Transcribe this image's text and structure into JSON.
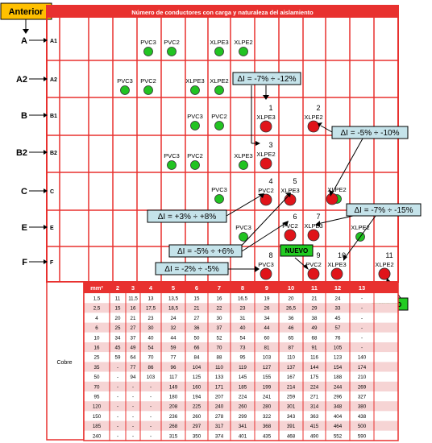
{
  "anterior_label": "Anterior",
  "header_title": "Número de conductores con carga y naturaleza del aislamiento",
  "row_labels": [
    {
      "outer": "A",
      "inner": "A1"
    },
    {
      "outer": "A2",
      "inner": "A2"
    },
    {
      "outer": "B",
      "inner": "B1"
    },
    {
      "outer": "B2",
      "inner": "B2"
    },
    {
      "outer": "C",
      "inner": "C"
    },
    {
      "outer": "E",
      "inner": "E"
    },
    {
      "outer": "F",
      "inner": "F"
    }
  ],
  "insulation_labels": {
    "A1": [
      "PVC3",
      "PVC2",
      "XLPE3",
      "XLPE2"
    ],
    "A2": [
      "PVC3",
      "PVC2",
      "XLPE3",
      "XLPE2"
    ],
    "B1": [
      "PVC3",
      "PVC2"
    ],
    "B2": [
      "PVC3",
      "PVC2",
      "XLPE3"
    ],
    "C": [
      "PVC3"
    ],
    "E": [
      "PVC3"
    ],
    "E_right": "XLPE2",
    "C_right": "XLPE2",
    "numbered": [
      {
        "n": "1",
        "label": "XLPE3"
      },
      {
        "n": "2",
        "label": "XLPE2"
      },
      {
        "n": "3",
        "label": "XLPE2"
      },
      {
        "n": "4",
        "label": "PVC2"
      },
      {
        "n": "5",
        "label": "XLPE3"
      },
      {
        "n": "6",
        "label": "PVC2"
      },
      {
        "n": "7",
        "label": "XLPE3"
      },
      {
        "n": "8",
        "label": "PVC3"
      },
      {
        "n": "9",
        "label": "PVC2"
      },
      {
        "n": "10",
        "label": "XLPE3"
      },
      {
        "n": "11",
        "label": "XLPE2"
      }
    ]
  },
  "callouts": [
    "ΔI = -7% ÷ -12%",
    "ΔI = -5% ÷ -10%",
    "ΔI = +3% ÷ +8%",
    "ΔI = -7% ÷ -15%",
    "ΔI = -5% ÷ +6%",
    "ΔI = -2% ÷ -5%"
  ],
  "nuevo_label": "NUEVO",
  "table": {
    "section_label": "Cobre",
    "header": [
      "mm²",
      "2",
      "3",
      "4",
      "5",
      "6",
      "7",
      "8",
      "9",
      "10",
      "11",
      "12",
      "13"
    ],
    "rows": [
      [
        "1,5",
        "11",
        "11,5",
        "13",
        "13,5",
        "15",
        "16",
        "16,5",
        "19",
        "20",
        "21",
        "24",
        "-"
      ],
      [
        "2,5",
        "15",
        "16",
        "17,5",
        "18,5",
        "21",
        "22",
        "23",
        "26",
        "26,5",
        "29",
        "33",
        "-"
      ],
      [
        "4",
        "20",
        "21",
        "23",
        "24",
        "27",
        "30",
        "31",
        "34",
        "36",
        "38",
        "45",
        "-"
      ],
      [
        "6",
        "25",
        "27",
        "30",
        "32",
        "36",
        "37",
        "40",
        "44",
        "46",
        "49",
        "57",
        "-"
      ],
      [
        "10",
        "34",
        "37",
        "40",
        "44",
        "50",
        "52",
        "54",
        "60",
        "65",
        "68",
        "76",
        "-"
      ],
      [
        "16",
        "45",
        "49",
        "54",
        "59",
        "66",
        "70",
        "73",
        "81",
        "87",
        "91",
        "105",
        "-"
      ],
      [
        "25",
        "59",
        "64",
        "70",
        "77",
        "84",
        "88",
        "95",
        "103",
        "110",
        "116",
        "123",
        "140"
      ],
      [
        "35",
        "-",
        "77",
        "86",
        "96",
        "104",
        "110",
        "119",
        "127",
        "137",
        "144",
        "154",
        "174"
      ],
      [
        "50",
        "-",
        "94",
        "103",
        "117",
        "125",
        "133",
        "145",
        "155",
        "167",
        "175",
        "188",
        "210"
      ],
      [
        "70",
        "-",
        "-",
        "-",
        "149",
        "160",
        "171",
        "185",
        "199",
        "214",
        "224",
        "244",
        "269"
      ],
      [
        "95",
        "-",
        "-",
        "-",
        "180",
        "194",
        "207",
        "224",
        "241",
        "259",
        "271",
        "296",
        "327"
      ],
      [
        "120",
        "-",
        "-",
        "-",
        "208",
        "225",
        "240",
        "260",
        "280",
        "301",
        "314",
        "348",
        "380"
      ],
      [
        "150",
        "-",
        "-",
        "-",
        "236",
        "260",
        "278",
        "299",
        "322",
        "343",
        "363",
        "404",
        "438"
      ],
      [
        "185",
        "-",
        "-",
        "-",
        "268",
        "297",
        "317",
        "341",
        "368",
        "391",
        "415",
        "464",
        "500"
      ],
      [
        "240",
        "-",
        "-",
        "-",
        "315",
        "350",
        "374",
        "401",
        "435",
        "468",
        "490",
        "552",
        "590"
      ]
    ]
  },
  "colors": {
    "grid": "#e8312f",
    "green": "#22c322",
    "red": "#e0141a",
    "callout": "#c5e3ea",
    "nuevo": "#22cc22",
    "anterior": "#ffc000"
  }
}
